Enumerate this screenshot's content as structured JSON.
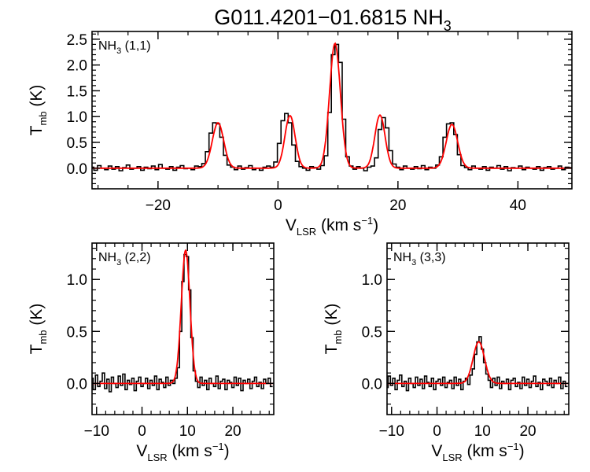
{
  "figure": {
    "title_main": "G011.4201−01.6815 NH",
    "title_sub": "3"
  },
  "chart_data": [
    {
      "type": "line",
      "panel": "top",
      "label": "NH3 (1,1)",
      "label_main": "NH",
      "label_sub": "3",
      "label_tail": " (1,1)",
      "xlabel_main": "V",
      "xlabel_sub": "LSR",
      "xlabel_tail": " (km s",
      "xlabel_sup": "−1",
      "xlabel_close": ")",
      "ylabel_main": "T",
      "ylabel_sub": "mb",
      "ylabel_tail": " (K)",
      "xlim": [
        -31,
        49
      ],
      "ylim": [
        -0.4,
        2.65
      ],
      "xticks": [
        -20,
        0,
        20,
        40
      ],
      "xtick_labels": [
        "−20",
        "0",
        "20",
        "40"
      ],
      "xminor_step": 5,
      "yticks": [
        0.0,
        0.5,
        1.0,
        1.5,
        2.0,
        2.5
      ],
      "ytick_labels": [
        "0.0",
        "0.5",
        "1.0",
        "1.5",
        "2.0",
        "2.5"
      ],
      "yminor_step": 0.1,
      "series": [
        {
          "role": "fit",
          "color": "#ff0000",
          "components": [
            {
              "center": -10.0,
              "amp": 0.88,
              "sigma": 0.95
            },
            {
              "center": 2.0,
              "amp": 1.02,
              "sigma": 0.85
            },
            {
              "center": 9.5,
              "amp": 2.42,
              "sigma": 0.9
            },
            {
              "center": 17.0,
              "amp": 1.03,
              "sigma": 0.85
            },
            {
              "center": 29.0,
              "amp": 0.85,
              "sigma": 0.95
            }
          ]
        },
        {
          "role": "data",
          "color": "#000000",
          "x": [
            -31.0,
            -30.4,
            -29.8,
            -29.2,
            -28.6,
            -28.0,
            -27.4,
            -26.8,
            -26.2,
            -25.6,
            -25.0,
            -24.4,
            -23.8,
            -23.2,
            -22.6,
            -22.0,
            -21.4,
            -20.8,
            -20.2,
            -19.6,
            -19.0,
            -18.4,
            -17.8,
            -17.2,
            -16.6,
            -16.0,
            -15.4,
            -14.8,
            -14.2,
            -13.6,
            -13.0,
            -12.4,
            -11.8,
            -11.2,
            -10.6,
            -10.0,
            -9.4,
            -8.8,
            -8.2,
            -7.6,
            -7.0,
            -6.4,
            -5.8,
            -5.2,
            -4.6,
            -4.0,
            -3.4,
            -2.8,
            -2.2,
            -1.6,
            -1.0,
            -0.4,
            0.2,
            0.8,
            1.4,
            2.0,
            2.6,
            3.2,
            3.8,
            4.4,
            5.0,
            5.6,
            6.2,
            6.8,
            7.4,
            8.0,
            8.6,
            9.2,
            9.8,
            10.4,
            11.0,
            11.6,
            12.2,
            12.8,
            13.4,
            14.0,
            14.6,
            15.2,
            15.8,
            16.4,
            17.0,
            17.6,
            18.2,
            18.8,
            19.4,
            20.0,
            20.6,
            21.2,
            21.8,
            22.4,
            23.0,
            23.6,
            24.2,
            24.8,
            25.4,
            26.0,
            26.6,
            27.2,
            27.8,
            28.4,
            29.0,
            29.6,
            30.2,
            30.8,
            31.4,
            32.0,
            32.6,
            33.2,
            33.8,
            34.4,
            35.0,
            35.6,
            36.2,
            36.8,
            37.4,
            38.0,
            38.6,
            39.2,
            39.8,
            40.4,
            41.0,
            41.6,
            42.2,
            42.8,
            43.4,
            44.0,
            44.6,
            45.2,
            45.8,
            46.4,
            47.0,
            47.6,
            48.2,
            48.8
          ],
          "values": [
            0.02,
            -0.04,
            0.05,
            0.0,
            -0.03,
            0.04,
            -0.02,
            0.03,
            -0.05,
            0.01,
            0.06,
            -0.02,
            0.0,
            0.03,
            -0.04,
            0.02,
            -0.01,
            0.04,
            -0.03,
            0.07,
            0.0,
            -0.02,
            0.03,
            -0.04,
            0.02,
            0.05,
            -0.01,
            0.0,
            -0.03,
            0.04,
            0.03,
            0.09,
            0.32,
            0.68,
            0.88,
            0.86,
            0.6,
            0.25,
            0.06,
            0.02,
            -0.03,
            0.04,
            -0.02,
            0.01,
            0.05,
            -0.03,
            0.0,
            -0.04,
            0.02,
            0.04,
            0.02,
            0.12,
            0.48,
            0.92,
            1.06,
            0.88,
            0.45,
            0.13,
            0.03,
            0.0,
            -0.04,
            0.03,
            0.01,
            -0.02,
            0.05,
            0.24,
            1.08,
            2.2,
            2.4,
            2.05,
            0.95,
            0.22,
            0.04,
            -0.02,
            0.03,
            0.0,
            -0.05,
            0.02,
            0.04,
            0.2,
            0.75,
            0.98,
            0.78,
            0.34,
            0.08,
            0.02,
            -0.03,
            0.04,
            0.0,
            -0.02,
            0.03,
            -0.01,
            0.05,
            -0.03,
            0.02,
            0.0,
            0.06,
            0.22,
            0.6,
            0.86,
            0.88,
            0.65,
            0.26,
            0.05,
            0.01,
            -0.03,
            0.04,
            0.0,
            -0.02,
            0.03,
            -0.04,
            0.02,
            0.0,
            0.05,
            -0.02,
            0.03,
            -0.05,
            0.01,
            0.0,
            0.04,
            -0.03,
            0.02,
            0.0,
            -0.02,
            0.03,
            -0.04,
            0.01,
            0.03,
            -0.02,
            0.0,
            0.04,
            -0.03,
            0.02,
            0.01
          ]
        }
      ]
    },
    {
      "type": "line",
      "panel": "bottom-left",
      "label": "NH3 (2,2)",
      "label_main": "NH",
      "label_sub": "3",
      "label_tail": " (2,2)",
      "xlabel_main": "V",
      "xlabel_sub": "LSR",
      "xlabel_tail": " (km s",
      "xlabel_sup": "−1",
      "xlabel_close": ")",
      "ylabel_main": "T",
      "ylabel_sub": "mb",
      "ylabel_tail": " (K)",
      "xlim": [
        -11,
        29
      ],
      "ylim": [
        -0.3,
        1.35
      ],
      "xticks": [
        -10,
        0,
        10,
        20
      ],
      "xtick_labels": [
        "−10",
        "0",
        "10",
        "20"
      ],
      "xminor_step": 2,
      "yticks": [
        0.0,
        0.5,
        1.0
      ],
      "ytick_labels": [
        "0.0",
        "0.5",
        "1.0"
      ],
      "yminor_step": 0.1,
      "series": [
        {
          "role": "fit",
          "color": "#ff0000",
          "components": [
            {
              "center": 9.6,
              "amp": 1.28,
              "sigma": 0.95
            }
          ]
        },
        {
          "role": "data",
          "color": "#000000",
          "x": [
            -11.0,
            -10.5,
            -10.0,
            -9.5,
            -9.0,
            -8.5,
            -8.0,
            -7.5,
            -7.0,
            -6.5,
            -6.0,
            -5.5,
            -5.0,
            -4.5,
            -4.0,
            -3.5,
            -3.0,
            -2.5,
            -2.0,
            -1.5,
            -1.0,
            -0.5,
            0.0,
            0.5,
            1.0,
            1.5,
            2.0,
            2.5,
            3.0,
            3.5,
            4.0,
            4.5,
            5.0,
            5.5,
            6.0,
            6.5,
            7.0,
            7.5,
            8.0,
            8.5,
            9.0,
            9.5,
            10.0,
            10.5,
            11.0,
            11.5,
            12.0,
            12.5,
            13.0,
            13.5,
            14.0,
            14.5,
            15.0,
            15.5,
            16.0,
            16.5,
            17.0,
            17.5,
            18.0,
            18.5,
            19.0,
            19.5,
            20.0,
            20.5,
            21.0,
            21.5,
            22.0,
            22.5,
            23.0,
            23.5,
            24.0,
            24.5,
            25.0,
            25.5,
            26.0,
            26.5,
            27.0,
            27.5,
            28.0,
            28.5
          ],
          "values": [
            0.05,
            -0.06,
            0.08,
            -0.03,
            0.02,
            0.1,
            -0.05,
            0.04,
            -0.08,
            0.06,
            0.0,
            -0.04,
            0.07,
            -0.02,
            0.09,
            -0.06,
            0.03,
            -0.01,
            0.05,
            -0.07,
            0.02,
            0.06,
            -0.03,
            0.0,
            0.05,
            -0.05,
            0.03,
            -0.02,
            0.07,
            -0.06,
            0.04,
            0.01,
            -0.04,
            0.06,
            -0.02,
            0.03,
            0.0,
            0.05,
            0.15,
            0.5,
            0.98,
            1.24,
            1.22,
            0.9,
            0.44,
            0.12,
            0.02,
            -0.04,
            0.06,
            -0.02,
            0.03,
            -0.06,
            0.05,
            0.0,
            -0.03,
            0.07,
            -0.05,
            0.02,
            0.04,
            -0.06,
            0.03,
            0.01,
            -0.04,
            0.06,
            -0.02,
            0.05,
            -0.07,
            0.03,
            0.0,
            0.04,
            -0.05,
            0.02,
            0.06,
            -0.03,
            0.01,
            -0.05,
            0.04,
            0.0,
            0.05,
            -0.03
          ]
        }
      ]
    },
    {
      "type": "line",
      "panel": "bottom-right",
      "label": "NH3 (3,3)",
      "label_main": "NH",
      "label_sub": "3",
      "label_tail": " (3,3)",
      "xlabel_main": "V",
      "xlabel_sub": "LSR",
      "xlabel_tail": " (km s",
      "xlabel_sup": "−1",
      "xlabel_close": ")",
      "ylabel_main": "T",
      "ylabel_sub": "mb",
      "ylabel_tail": " (K)",
      "xlim": [
        -11,
        29
      ],
      "ylim": [
        -0.3,
        1.35
      ],
      "xticks": [
        -10,
        0,
        10,
        20
      ],
      "xtick_labels": [
        "−10",
        "0",
        "10",
        "20"
      ],
      "xminor_step": 2,
      "yticks": [
        0.0,
        0.5,
        1.0
      ],
      "ytick_labels": [
        "0.0",
        "0.5",
        "1.0"
      ],
      "yminor_step": 0.1,
      "series": [
        {
          "role": "fit",
          "color": "#ff0000",
          "components": [
            {
              "center": 9.2,
              "amp": 0.4,
              "sigma": 1.25
            }
          ]
        },
        {
          "role": "data",
          "color": "#000000",
          "x": [
            -11.0,
            -10.5,
            -10.0,
            -9.5,
            -9.0,
            -8.5,
            -8.0,
            -7.5,
            -7.0,
            -6.5,
            -6.0,
            -5.5,
            -5.0,
            -4.5,
            -4.0,
            -3.5,
            -3.0,
            -2.5,
            -2.0,
            -1.5,
            -1.0,
            -0.5,
            0.0,
            0.5,
            1.0,
            1.5,
            2.0,
            2.5,
            3.0,
            3.5,
            4.0,
            4.5,
            5.0,
            5.5,
            6.0,
            6.5,
            7.0,
            7.5,
            8.0,
            8.5,
            9.0,
            9.5,
            10.0,
            10.5,
            11.0,
            11.5,
            12.0,
            12.5,
            13.0,
            13.5,
            14.0,
            14.5,
            15.0,
            15.5,
            16.0,
            16.5,
            17.0,
            17.5,
            18.0,
            18.5,
            19.0,
            19.5,
            20.0,
            20.5,
            21.0,
            21.5,
            22.0,
            22.5,
            23.0,
            23.5,
            24.0,
            24.5,
            25.0,
            25.5,
            26.0,
            26.5,
            27.0,
            27.5,
            28.0,
            28.5
          ],
          "values": [
            -0.04,
            0.07,
            -0.02,
            0.05,
            -0.06,
            0.03,
            0.08,
            -0.03,
            0.02,
            -0.07,
            0.05,
            0.0,
            -0.04,
            0.06,
            -0.02,
            0.04,
            -0.05,
            0.07,
            0.01,
            -0.03,
            0.05,
            -0.06,
            0.02,
            0.04,
            -0.02,
            0.06,
            -0.04,
            0.01,
            0.03,
            -0.05,
            0.06,
            -0.02,
            0.04,
            -0.06,
            0.02,
            0.05,
            -0.01,
            0.08,
            0.14,
            0.28,
            0.4,
            0.45,
            0.33,
            0.2,
            0.09,
            0.03,
            -0.04,
            0.05,
            -0.02,
            0.06,
            -0.05,
            0.02,
            0.0,
            0.04,
            -0.06,
            0.03,
            0.05,
            -0.03,
            0.01,
            -0.05,
            0.06,
            -0.02,
            0.04,
            -0.04,
            0.02,
            0.07,
            -0.03,
            0.01,
            -0.06,
            0.04,
            0.02,
            -0.02,
            0.05,
            -0.04,
            0.03,
            0.0,
            0.06,
            -0.05,
            0.02,
            -0.03
          ]
        }
      ]
    }
  ]
}
